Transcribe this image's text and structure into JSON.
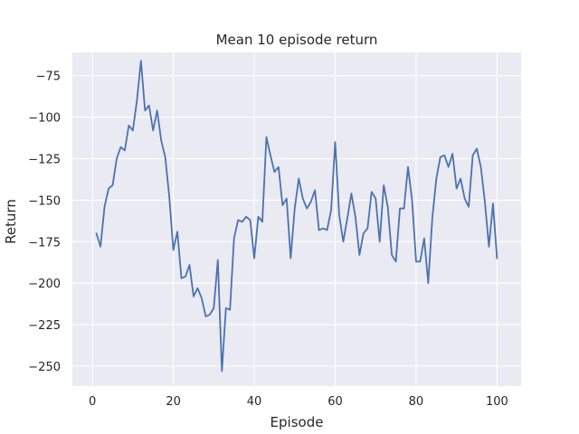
{
  "chart_data": {
    "type": "line",
    "title": "Mean 10 episode return",
    "xlabel": "Episode",
    "ylabel": "Return",
    "xlim": [
      -4.95,
      105.95
    ],
    "ylim": [
      -262,
      -61
    ],
    "xticks": [
      0,
      20,
      40,
      60,
      80,
      100
    ],
    "yticks": [
      -250,
      -225,
      -200,
      -175,
      -150,
      -125,
      -100,
      -75
    ],
    "grid": true,
    "colors": {
      "background": "#eaeaf2",
      "grid": "#ffffff",
      "line": "#4c72b0"
    },
    "series": [
      {
        "x": [
          1,
          2,
          3,
          4,
          5,
          6,
          7,
          8,
          9,
          10,
          11,
          12,
          13,
          14,
          15,
          16,
          17,
          18,
          19,
          20,
          21,
          22,
          23,
          24,
          25,
          26,
          27,
          28,
          29,
          30,
          31,
          32,
          33,
          34,
          35,
          36,
          37,
          38,
          39,
          40,
          41,
          42,
          43,
          44,
          45,
          46,
          47,
          48,
          49,
          50,
          51,
          52,
          53,
          54,
          55,
          56,
          57,
          58,
          59,
          60,
          61,
          62,
          63,
          64,
          65,
          66,
          67,
          68,
          69,
          70,
          71,
          72,
          73,
          74,
          75,
          76,
          77,
          78,
          79,
          80,
          81,
          82,
          83,
          84,
          85,
          86,
          87,
          88,
          89,
          90,
          91,
          92,
          93,
          94,
          95,
          96,
          97,
          98,
          99,
          100
        ],
        "values": [
          -170,
          -178,
          -154,
          -143,
          -141,
          -125,
          -118,
          -120,
          -105,
          -108,
          -90,
          -66,
          -96,
          -93,
          -108,
          -96,
          -114,
          -124,
          -148,
          -180,
          -169,
          -197,
          -196,
          -189,
          -208,
          -203,
          -209,
          -220,
          -219,
          -215,
          -186,
          -253,
          -215,
          -216,
          -173,
          -162,
          -163,
          -160,
          -162,
          -185,
          -160,
          -163,
          -112,
          -123,
          -133,
          -130,
          -153,
          -149,
          -185,
          -155,
          -137,
          -149,
          -155,
          -151,
          -144,
          -168,
          -167,
          -168,
          -156,
          -115,
          -159,
          -175,
          -161,
          -146,
          -160,
          -183,
          -170,
          -167,
          -145,
          -149,
          -175,
          -141,
          -154,
          -183,
          -187,
          -155,
          -155,
          -130,
          -150,
          -187,
          -187,
          -173,
          -200,
          -161,
          -137,
          -124,
          -123,
          -130,
          -122,
          -143,
          -137,
          -149,
          -154,
          -123,
          -119,
          -130,
          -151,
          -178,
          -152,
          -185
        ]
      }
    ]
  }
}
